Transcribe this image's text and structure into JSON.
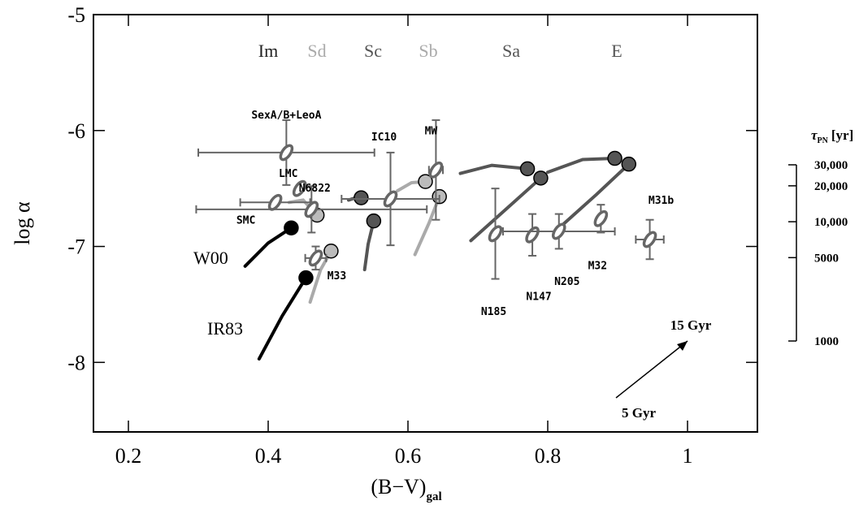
{
  "chart_data": {
    "type": "scatter",
    "x_label": "(B−V)",
    "x_label_sub": "gal",
    "y_label": "log α",
    "y2_label": "τ",
    "y2_label_sub": "PN",
    "y2_label_unit": "[yr]",
    "xlim": [
      0.15,
      1.1
    ],
    "ylim": [
      -8.6,
      -5
    ],
    "xticks": [
      0.2,
      0.4,
      0.6,
      0.8,
      1
    ],
    "yticks": [
      -5,
      -6,
      -7,
      -8
    ],
    "y2lim": [
      1000,
      30000
    ],
    "y2_log": true,
    "y2ticks": [
      {
        "value": 30000,
        "label": "30,000"
      },
      {
        "value": 20000,
        "label": "20,000"
      },
      {
        "value": 10000,
        "label": "10,000"
      },
      5000,
      1000
    ],
    "type_labels": [
      {
        "text": "Im",
        "color": "#222222"
      },
      {
        "text": "Sd",
        "color": "#aaaaaa"
      },
      {
        "text": "Sc",
        "color": "#555555"
      },
      {
        "text": "Sb",
        "color": "#aaaaaa"
      },
      {
        "text": "Sa",
        "color": "#555555"
      },
      {
        "text": "E",
        "color": "#555555"
      }
    ],
    "galaxies": [
      {
        "name": "SexA/B+LeoA",
        "x": 0.426,
        "y": -6.19,
        "xerr": 0.126,
        "yerr": 0.28
      },
      {
        "name": "LMC",
        "x": 0.445,
        "y": -6.5,
        "xerr": null,
        "yerr": null
      },
      {
        "name": "N6822",
        "x": 0.462,
        "y": -6.68,
        "xerr": 0.165,
        "yerr": 0.2
      },
      {
        "name": "SMC",
        "x": 0.41,
        "y": -6.62,
        "xerr": 0.05,
        "yerr": null
      },
      {
        "name": "M33",
        "x": 0.468,
        "y": -7.1,
        "xerr": 0.015,
        "yerr": 0.1
      },
      {
        "name": "IC10",
        "x": 0.575,
        "y": -6.59,
        "xerr": 0.07,
        "yerr": 0.4
      },
      {
        "name": "MW",
        "x": 0.64,
        "y": -6.34,
        "xerr": 0.01,
        "yerr": 0.43
      },
      {
        "name": "N185",
        "x": 0.725,
        "y": -6.89,
        "xerr": null,
        "yerr": 0.39
      },
      {
        "name": "N147",
        "x": 0.778,
        "y": -6.9,
        "xerr": null,
        "yerr": 0.18
      },
      {
        "name": "N205",
        "x": 0.816,
        "y": -6.87,
        "xerr": 0.08,
        "yerr": 0.15
      },
      {
        "name": "M32",
        "x": 0.876,
        "y": -6.76,
        "xerr": null,
        "yerr": 0.12
      },
      {
        "name": "M31b",
        "x": 0.946,
        "y": -6.94,
        "xerr": 0.02,
        "yerr": 0.17
      }
    ],
    "tracks": [
      {
        "name": "W00",
        "color": "#000000",
        "x": [
          0.367,
          0.4,
          0.433
        ],
        "y": [
          -7.17,
          -6.97,
          -6.84
        ]
      },
      {
        "name": "IR83",
        "color": "#000000",
        "x": [
          0.387,
          0.42,
          0.454
        ],
        "y": [
          -7.97,
          -7.6,
          -7.27
        ]
      },
      {
        "color": "#aaaaaa",
        "x": [
          0.46,
          0.475,
          0.49
        ],
        "y": [
          -7.48,
          -7.2,
          -7.04
        ]
      },
      {
        "color": "#aaaaaa",
        "x": [
          0.43,
          0.45,
          0.47
        ],
        "y": [
          -6.62,
          -6.6,
          -6.73
        ]
      },
      {
        "color": "#555555",
        "x": [
          0.538,
          0.543,
          0.551
        ],
        "y": [
          -7.2,
          -6.98,
          -6.78
        ]
      },
      {
        "color": "#555555",
        "x": [
          0.515,
          0.525,
          0.533
        ],
        "y": [
          -6.6,
          -6.58,
          -6.58
        ]
      },
      {
        "color": "#aaaaaa",
        "x": [
          0.61,
          0.63,
          0.645
        ],
        "y": [
          -7.07,
          -6.8,
          -6.57
        ]
      },
      {
        "color": "#aaaaaa",
        "x": [
          0.585,
          0.605,
          0.625
        ],
        "y": [
          -6.52,
          -6.45,
          -6.44
        ]
      },
      {
        "color": "#555555",
        "x": [
          0.69,
          0.74,
          0.79
        ],
        "y": [
          -6.95,
          -6.68,
          -6.41
        ]
      },
      {
        "color": "#555555",
        "x": [
          0.675,
          0.72,
          0.771
        ],
        "y": [
          -6.37,
          -6.3,
          -6.33
        ]
      },
      {
        "color": "#555555",
        "x": [
          0.82,
          0.87,
          0.916
        ],
        "y": [
          -6.82,
          -6.55,
          -6.29
        ]
      },
      {
        "color": "#555555",
        "x": [
          0.8,
          0.85,
          0.896
        ],
        "y": [
          -6.36,
          -6.25,
          -6.24
        ]
      }
    ],
    "annotations": [
      "15 Gyr",
      "5 Gyr"
    ]
  }
}
